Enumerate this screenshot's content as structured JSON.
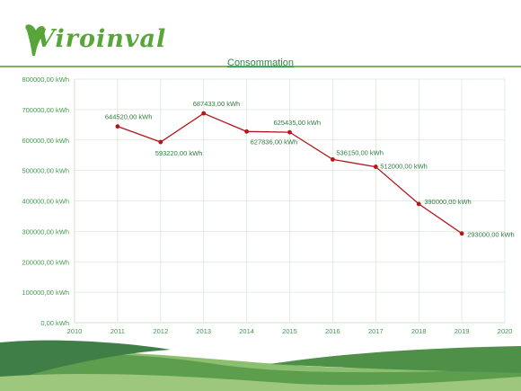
{
  "brand": {
    "name": "Viroinval",
    "primary_color": "#58a53a",
    "accent_color": "#7cb65b"
  },
  "chart_data": {
    "type": "line",
    "title": "Consommation",
    "xlabel": "",
    "ylabel": "",
    "x": [
      2011,
      2012,
      2013,
      2014,
      2015,
      2016,
      2017,
      2018,
      2019
    ],
    "xlim": [
      2010,
      2020
    ],
    "x_ticks": [
      "2010",
      "2011",
      "2012",
      "2013",
      "2014",
      "2015",
      "2016",
      "2017",
      "2018",
      "2019",
      "2020"
    ],
    "ylim": [
      0,
      800000
    ],
    "y_ticks": [
      "0,00 kWh",
      "100000,00 kWh",
      "200000,00 kWh",
      "300000,00 kWh",
      "400000,00 kWh",
      "500000,00 kWh",
      "600000,00 kWh",
      "700000,00 kWh",
      "800000,00 kWh"
    ],
    "y_tick_values": [
      0,
      100000,
      200000,
      300000,
      400000,
      500000,
      600000,
      700000,
      800000
    ],
    "series": [
      {
        "values": [
          644520,
          593220,
          687433,
          627836,
          625435,
          536150,
          512000,
          390000,
          293000
        ],
        "labels": [
          "644520,00 kWh",
          "593220,00 kWh",
          "687433,00 kWh",
          "627836,00 kWh",
          "625435,00 kWh",
          "536150,00 kWh",
          "512000,00 kWh",
          "390000,00 kWh",
          "293000,00 kWh"
        ],
        "color": "#b3161c"
      }
    ],
    "grid": true,
    "gridline_color": "#d8ead8",
    "axis_text_color": "#3f9a4b"
  }
}
